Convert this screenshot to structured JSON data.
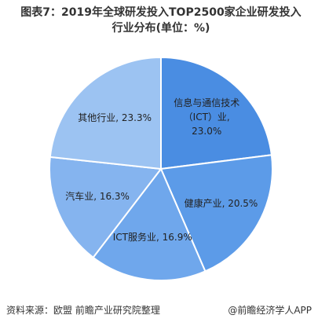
{
  "chart_data": {
    "type": "pie",
    "title": "图表7：2019年全球研发投入TOP2500家企业研发投入行业分布(单位：%)",
    "values": [
      23.0,
      20.5,
      16.9,
      16.3,
      23.3
    ],
    "value_labels": [
      "信息与通信技术（ICT）业, 23.0%",
      "健康产业, 20.5%",
      "ICT服务业, 16.9%",
      "汽车业, 16.3%",
      "其他行业, 23.3%"
    ],
    "colors": [
      "#4a8de2",
      "#5c9be8",
      "#6fa7ec",
      "#85b4ef",
      "#9cc3f2"
    ],
    "source": "资料来源：欧盟 前瞻产业研究院整理",
    "brand": "@前瞻经济学人APP"
  }
}
